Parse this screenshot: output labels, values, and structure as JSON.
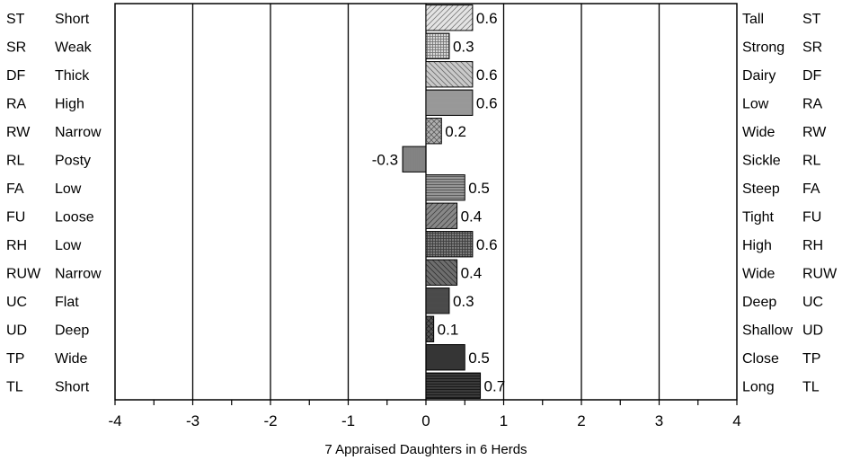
{
  "chart_data": {
    "type": "bar",
    "orientation": "horizontal",
    "categories": [
      "ST",
      "SR",
      "DF",
      "RA",
      "RW",
      "RL",
      "FA",
      "FU",
      "RH",
      "RUW",
      "UC",
      "UD",
      "TP",
      "TL"
    ],
    "left_labels": [
      "Short",
      "Weak",
      "Thick",
      "High",
      "Narrow",
      "Posty",
      "Low",
      "Loose",
      "Low",
      "Narrow",
      "Flat",
      "Deep",
      "Wide",
      "Short"
    ],
    "right_labels": [
      "Tall",
      "Strong",
      "Dairy",
      "Low",
      "Wide",
      "Sickle",
      "Steep",
      "Tight",
      "High",
      "Wide",
      "Deep",
      "Shallow",
      "Close",
      "Long"
    ],
    "values": [
      0.6,
      0.3,
      0.6,
      0.6,
      0.2,
      -0.3,
      0.5,
      0.4,
      0.6,
      0.4,
      0.3,
      0.1,
      0.5,
      0.7
    ],
    "value_labels": [
      "0.6",
      "0.3",
      "0.6",
      "0.6",
      "0.2",
      "-0.3",
      "0.5",
      "0.4",
      "0.6",
      "0.4",
      "0.3",
      "0.1",
      "0.5",
      "0.7"
    ],
    "xlim": [
      -4,
      4
    ],
    "xticks": [
      "-4",
      "-3",
      "-2",
      "-1",
      "0",
      "1",
      "2",
      "3",
      "4"
    ],
    "xlabel": "7 Appraised Daughters in 6 Herds",
    "grid": "vertical",
    "colors": {
      "bar_light": "#e4e4e4",
      "bar_dark": "#3a3a3a",
      "axis": "#000000"
    }
  }
}
